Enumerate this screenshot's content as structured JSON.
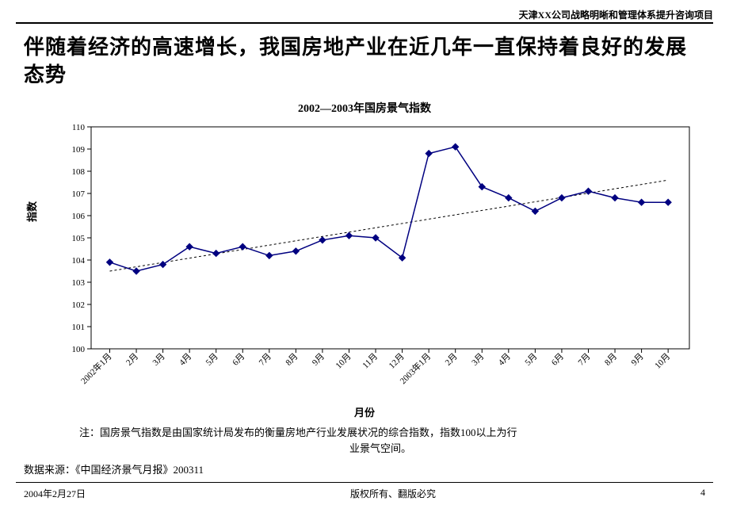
{
  "header": {
    "project": "天津XX公司战略明晰和管理体系提升咨询项目"
  },
  "title": "伴随着经济的高速增长，我国房地产业在近几年一直保持着良好的发展态势",
  "chart": {
    "type": "line",
    "title": "2002—2003年国房景气指数",
    "xlabel": "月份",
    "ylabel": "指数",
    "categories": [
      "2002年1月",
      "2月",
      "3月",
      "4月",
      "5月",
      "6月",
      "7月",
      "8月",
      "9月",
      "10月",
      "11月",
      "12月",
      "2003年1月",
      "2月",
      "3月",
      "4月",
      "5月",
      "6月",
      "7月",
      "8月",
      "9月",
      "10月"
    ],
    "values": [
      103.9,
      103.5,
      103.8,
      104.6,
      104.3,
      104.6,
      104.2,
      104.4,
      104.9,
      105.1,
      105.0,
      104.1,
      108.8,
      109.1,
      107.3,
      106.8,
      106.2,
      106.8,
      107.1,
      106.8,
      106.6,
      106.6
    ],
    "ylim": [
      100,
      110
    ],
    "ytick_step": 1,
    "line_color": "#000080",
    "line_width": 1.5,
    "marker_color": "#000080",
    "marker_size": 4,
    "marker_shape": "diamond",
    "trendline_color": "#000000",
    "trendline_dash": "3,3",
    "trendline_start_y": 103.5,
    "trendline_end_y": 107.6,
    "border_color": "#000000",
    "tick_font_size": 11,
    "label_font_size": 13,
    "title_font_size": 14,
    "background_color": "#ffffff",
    "grid": false
  },
  "note_line1": "注：国房景气指数是由国家统计局发布的衡量房地产行业发展状况的综合指数，指数100以上为行",
  "note_line2": "业景气空间。",
  "source": "数据来源：《中国经济景气月报》200311",
  "footer": {
    "date": "2004年2月27日",
    "copyright": "版权所有、翻版必究",
    "page": "4"
  }
}
